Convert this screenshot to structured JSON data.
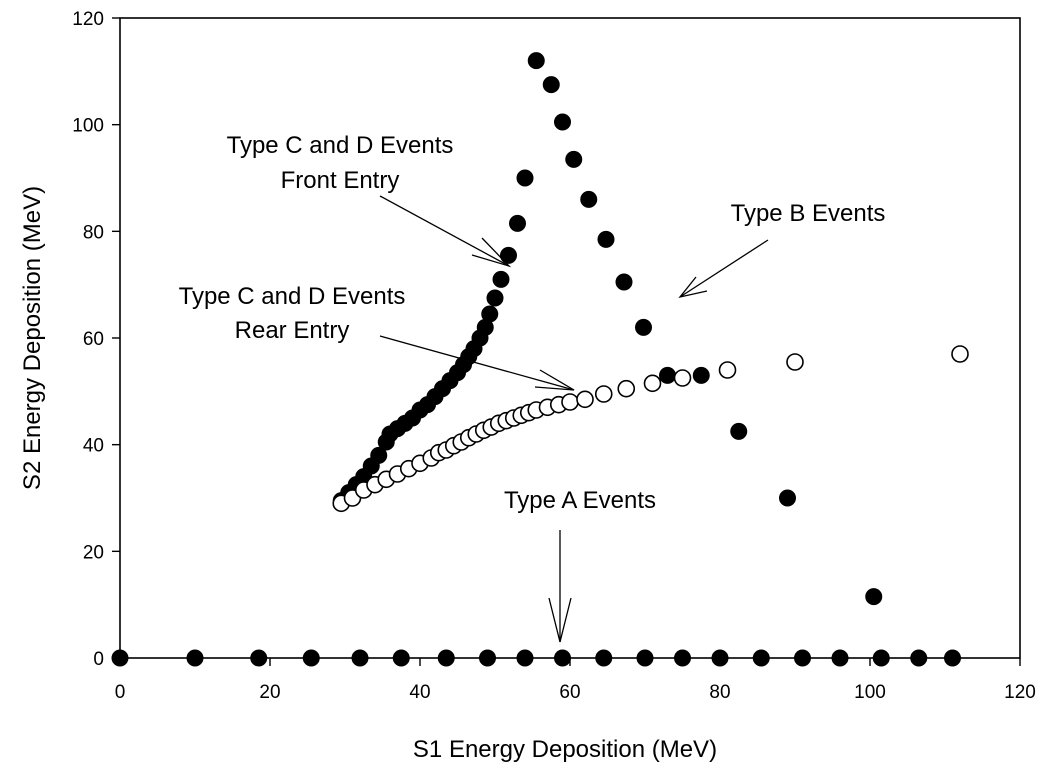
{
  "chart_data": {
    "type": "scatter",
    "title": "",
    "xlabel": "S1 Energy Deposition (MeV)",
    "ylabel": "S2 Energy Deposition (MeV)",
    "xlim": [
      0,
      120
    ],
    "ylim": [
      0,
      120
    ],
    "x_ticks": [
      0,
      20,
      40,
      60,
      80,
      100,
      120
    ],
    "y_ticks": [
      0,
      20,
      40,
      60,
      80,
      100,
      120
    ],
    "grid": false,
    "legend": "none",
    "series": [
      {
        "marker": "filled-circle",
        "x": [
          29.5,
          30.5,
          31.5,
          32.5,
          33.5,
          34.5,
          35.5,
          36.0,
          37.0,
          38.0,
          39.0,
          40.0,
          41.0,
          42.0,
          43.0,
          44.0,
          45.0,
          45.8,
          46.5,
          47.2,
          48.0,
          48.7,
          49.3,
          50.0,
          50.8,
          51.8,
          53.0,
          54.0,
          55.5,
          57.5,
          59.0,
          60.5,
          62.5,
          64.8,
          67.2,
          69.8,
          73.0
        ],
        "y": [
          29.5,
          31.0,
          32.5,
          34.0,
          36.0,
          38.0,
          40.5,
          42.0,
          43.0,
          44.0,
          45.0,
          46.5,
          47.5,
          49.0,
          50.5,
          52.0,
          53.5,
          55.0,
          56.5,
          58.0,
          60.0,
          62.0,
          64.5,
          67.5,
          71.0,
          75.5,
          81.5,
          90.0,
          112.0,
          107.5,
          100.5,
          93.5,
          86.0,
          78.5,
          70.5,
          62.0,
          53.0
        ]
      },
      {
        "marker": "filled-circle",
        "x": [
          77.5,
          82.5,
          89.0,
          100.5,
          0,
          10.0,
          18.5,
          25.5,
          32.0,
          37.5,
          43.5,
          49.0,
          54.0,
          59.0,
          64.5,
          70.0,
          75.0,
          80.0,
          85.5,
          91.0,
          96.0,
          101.5,
          106.5,
          111.0
        ],
        "y": [
          53.0,
          42.5,
          30.0,
          11.5,
          0,
          0,
          0,
          0,
          0,
          0,
          0,
          0,
          0,
          0,
          0,
          0,
          0,
          0,
          0,
          0,
          0,
          0,
          0,
          0
        ]
      },
      {
        "marker": "open-circle",
        "x": [
          29.5,
          31.0,
          32.5,
          34.0,
          35.5,
          37.0,
          38.5,
          40.0,
          41.5,
          42.5,
          43.5,
          44.5,
          45.5,
          46.5,
          47.5,
          48.5,
          49.5,
          50.5,
          51.5,
          52.5,
          53.5,
          54.5,
          55.5,
          57.0,
          58.5,
          60.0,
          62.0,
          64.5,
          67.5,
          71.0,
          75.0,
          81.0,
          90.0,
          112.0
        ],
        "y": [
          29.0,
          30.0,
          31.5,
          32.5,
          33.5,
          34.5,
          35.5,
          36.5,
          37.5,
          38.5,
          39.0,
          39.8,
          40.5,
          41.3,
          42.0,
          42.7,
          43.3,
          44.0,
          44.5,
          45.0,
          45.5,
          46.0,
          46.5,
          47.0,
          47.5,
          48.0,
          48.5,
          49.5,
          50.5,
          51.5,
          52.5,
          54.0,
          55.5,
          57.0
        ]
      }
    ],
    "annotations": [
      {
        "lines": [
          "Type C and D Events",
          "Front Entry"
        ]
      },
      {
        "lines": [
          "Type B Events"
        ]
      },
      {
        "lines": [
          "Type C and D Events",
          "Rear Entry"
        ]
      },
      {
        "lines": [
          "Type A Events"
        ]
      }
    ]
  }
}
